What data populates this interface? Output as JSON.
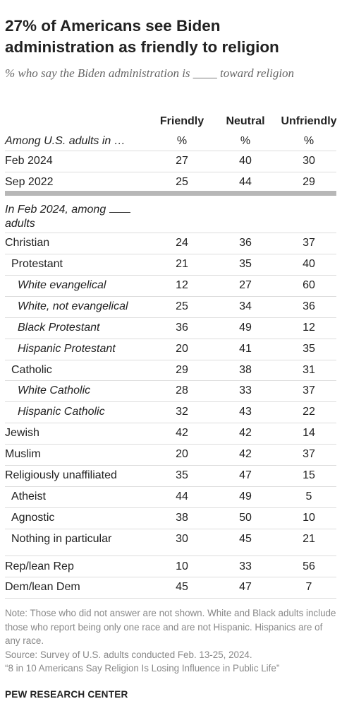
{
  "title_line1": "27% of Americans see Biden",
  "title_line2": "administration as friendly to religion",
  "subtitle_before": "% who say the Biden administration is",
  "subtitle_blank": "____",
  "subtitle_after": "toward religion",
  "chart_data": {
    "type": "table",
    "columns": [
      "Friendly",
      "Neutral",
      "Unfriendly"
    ],
    "unit_row": {
      "label": "Among U.S. adults in …",
      "units": [
        "%",
        "%",
        "%"
      ]
    },
    "section2_label": "In Feb 2024, among",
    "section2_label_end": "adults",
    "rows": [
      {
        "label": "Feb 2024",
        "values": [
          "27",
          "40",
          "30"
        ]
      },
      {
        "label": "Sep 2022",
        "values": [
          "25",
          "44",
          "29"
        ]
      },
      {
        "label": "Christian",
        "values": [
          "24",
          "36",
          "37"
        ]
      },
      {
        "label": "Protestant",
        "values": [
          "21",
          "35",
          "40"
        ]
      },
      {
        "label": "White evangelical",
        "values": [
          "12",
          "27",
          "60"
        ]
      },
      {
        "label": "White, not evangelical",
        "values": [
          "25",
          "34",
          "36"
        ]
      },
      {
        "label": "Black Protestant",
        "values": [
          "36",
          "49",
          "12"
        ]
      },
      {
        "label": "Hispanic Protestant",
        "values": [
          "20",
          "41",
          "35"
        ]
      },
      {
        "label": "Catholic",
        "values": [
          "29",
          "38",
          "31"
        ]
      },
      {
        "label": "White Catholic",
        "values": [
          "28",
          "33",
          "37"
        ]
      },
      {
        "label": "Hispanic Catholic",
        "values": [
          "32",
          "43",
          "22"
        ]
      },
      {
        "label": "Jewish",
        "values": [
          "42",
          "42",
          "14"
        ]
      },
      {
        "label": "Muslim",
        "values": [
          "20",
          "42",
          "37"
        ]
      },
      {
        "label": "Religiously unaffiliated",
        "values": [
          "35",
          "47",
          "15"
        ]
      },
      {
        "label": "Atheist",
        "values": [
          "44",
          "49",
          "5"
        ]
      },
      {
        "label": "Agnostic",
        "values": [
          "38",
          "50",
          "10"
        ]
      },
      {
        "label": "Nothing in particular",
        "values": [
          "30",
          "45",
          "21"
        ]
      },
      {
        "label": "Rep/lean Rep",
        "values": [
          "10",
          "33",
          "56"
        ]
      },
      {
        "label": "Dem/lean Dem",
        "values": [
          "45",
          "47",
          "7"
        ]
      }
    ]
  },
  "notes": [
    "Note: Those who did not answer are not shown. White and Black adults include those who report being only one race and are not Hispanic. Hispanics are of any race.",
    "Source: Survey of U.S. adults conducted Feb. 13-25, 2024.",
    "“8 in 10 Americans Say Religion Is Losing Influence in Public Life”"
  ],
  "footer": "PEW RESEARCH CENTER"
}
